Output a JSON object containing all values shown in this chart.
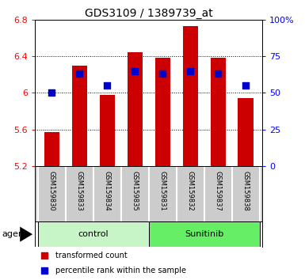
{
  "title": "GDS3109 / 1389739_at",
  "samples": [
    "GSM159830",
    "GSM159833",
    "GSM159834",
    "GSM159835",
    "GSM159831",
    "GSM159832",
    "GSM159837",
    "GSM159838"
  ],
  "red_values": [
    5.57,
    6.3,
    5.98,
    6.44,
    6.38,
    6.73,
    6.38,
    5.94
  ],
  "blue_values": [
    50,
    63,
    55,
    65,
    63,
    65,
    63,
    55
  ],
  "ylim_left": [
    5.2,
    6.8
  ],
  "ylim_right": [
    0,
    100
  ],
  "yticks_left": [
    5.2,
    5.6,
    6.0,
    6.4,
    6.8
  ],
  "ytick_labels_left": [
    "5.2",
    "5.6",
    "6",
    "6.4",
    "6.8"
  ],
  "yticks_right": [
    0,
    25,
    50,
    75,
    100
  ],
  "ytick_labels_right": [
    "0",
    "25",
    "50",
    "75",
    "100%"
  ],
  "groups": [
    {
      "label": "control",
      "indices": [
        0,
        1,
        2,
        3
      ],
      "color": "#c8f5c8"
    },
    {
      "label": "Sunitinib",
      "indices": [
        4,
        5,
        6,
        7
      ],
      "color": "#66ee66"
    }
  ],
  "bar_color": "#cc0000",
  "dot_color": "#0000cc",
  "bar_width": 0.55,
  "dot_size": 35,
  "legend_items": [
    "transformed count",
    "percentile rank within the sample"
  ],
  "background_color": "#ffffff",
  "tick_area_bg": "#cccccc",
  "base_value": 5.2,
  "agent_label": "agent"
}
